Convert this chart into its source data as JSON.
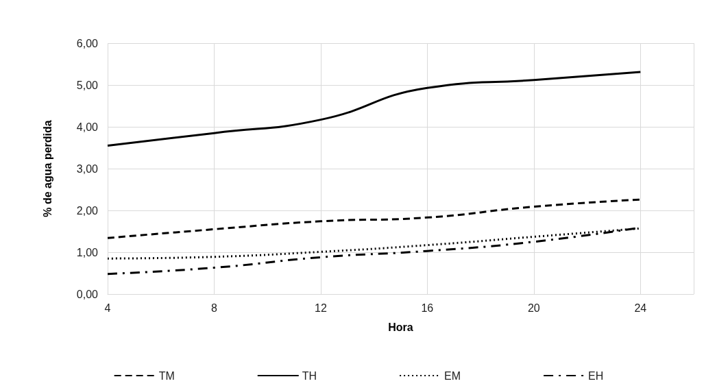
{
  "chart_data": {
    "type": "line",
    "xlabel": "Hora",
    "ylabel": "% de agua perdida",
    "x": [
      4,
      8,
      12,
      16,
      20,
      24
    ],
    "series": [
      {
        "name": "TM",
        "color": "#000000",
        "line_style": "dashed",
        "values": [
          1.34,
          1.55,
          1.74,
          1.83,
          2.09,
          2.26
        ]
      },
      {
        "name": "TH",
        "color": "#000000",
        "line_style": "solid",
        "values": [
          3.55,
          3.85,
          4.17,
          4.93,
          5.12,
          5.31
        ]
      },
      {
        "name": "EM",
        "color": "#000000",
        "line_style": "dotted",
        "values": [
          0.85,
          0.89,
          1.01,
          1.17,
          1.37,
          1.57
        ]
      },
      {
        "name": "EH",
        "color": "#000000",
        "line_style": "dashdot",
        "values": [
          0.48,
          0.63,
          0.88,
          1.03,
          1.25,
          1.59
        ]
      }
    ],
    "xlim": [
      4,
      26
    ],
    "xticks": [
      4,
      8,
      12,
      16,
      20,
      24
    ],
    "ylim": [
      0,
      6
    ],
    "yticks": [
      {
        "value": 0,
        "label": "0,00"
      },
      {
        "value": 1,
        "label": "1,00"
      },
      {
        "value": 2,
        "label": "2,00"
      },
      {
        "value": 3,
        "label": "3,00"
      },
      {
        "value": 4,
        "label": "4,00"
      },
      {
        "value": 5,
        "label": "5,00"
      },
      {
        "value": 6,
        "label": "6,00"
      }
    ],
    "grid": true,
    "legend": "bottom",
    "marker": "none"
  }
}
